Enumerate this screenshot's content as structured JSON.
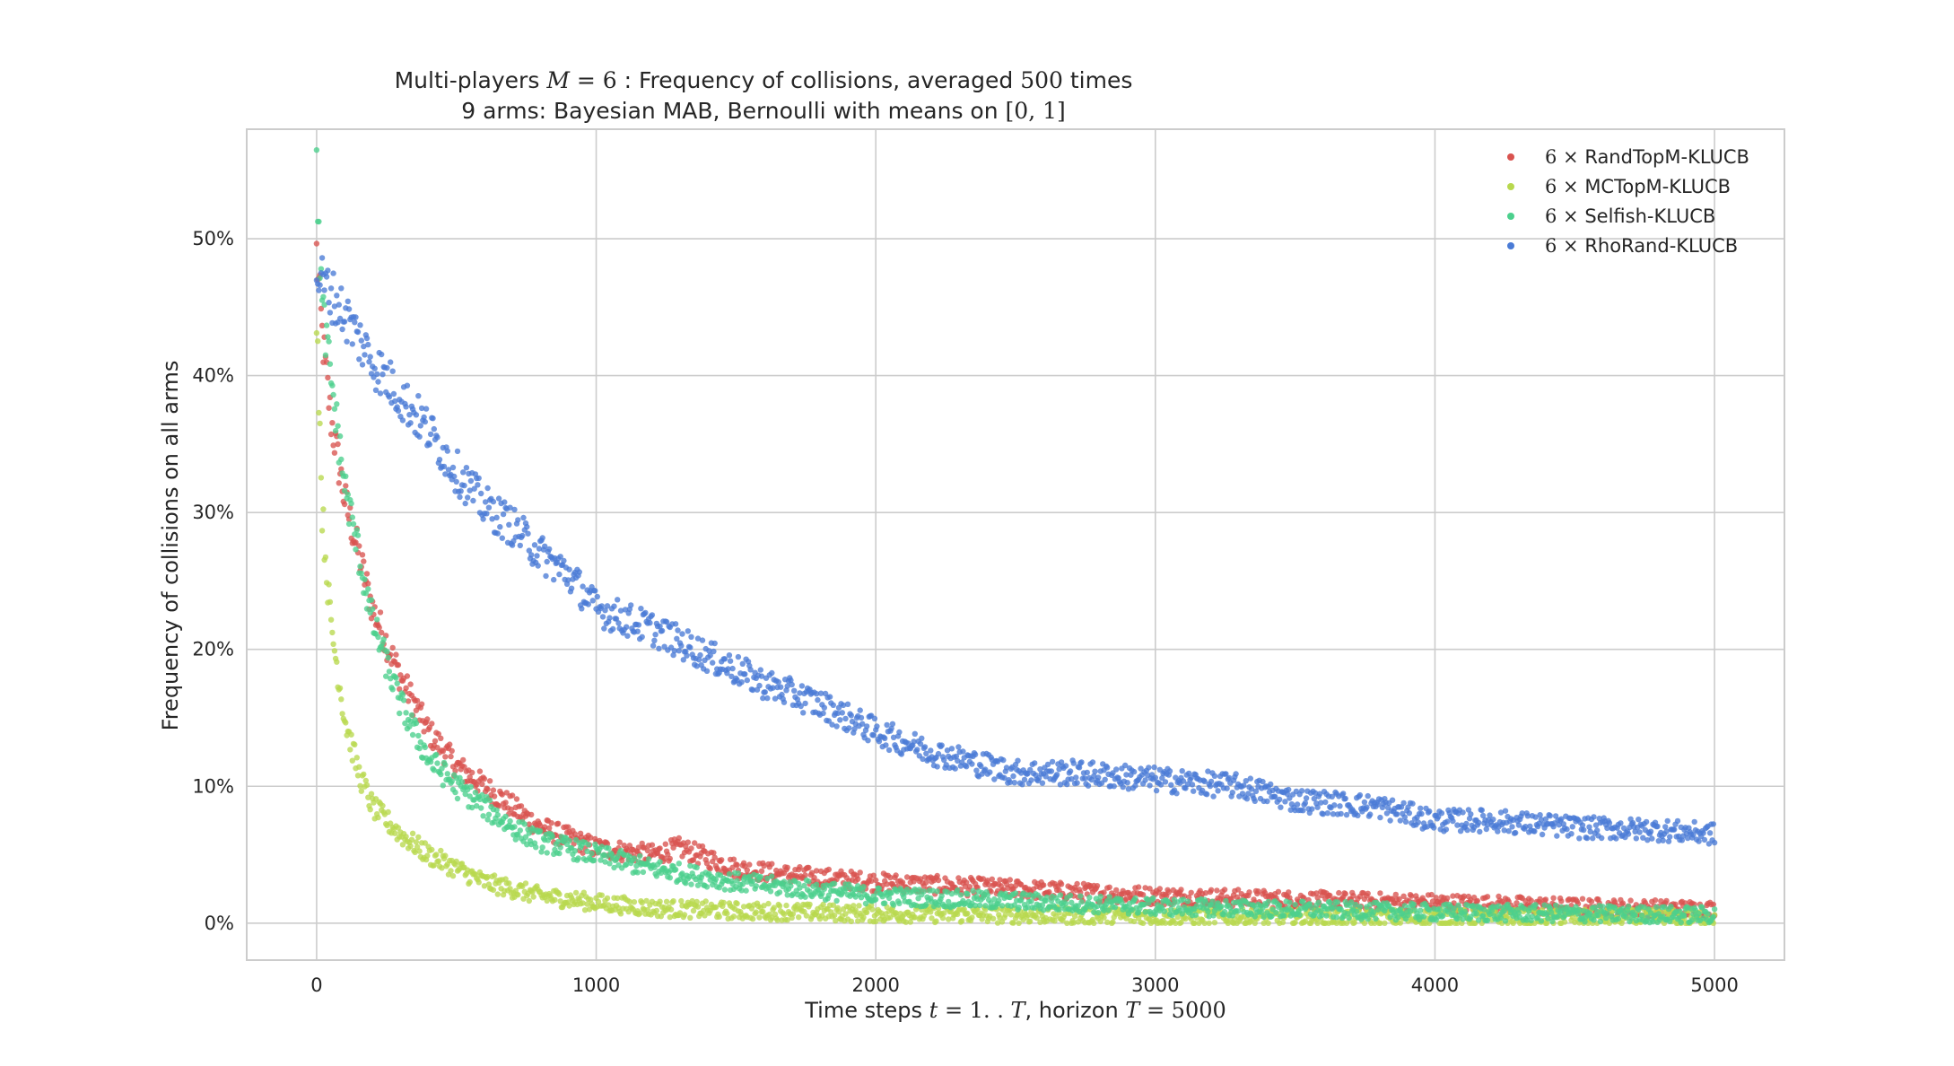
{
  "title": {
    "line1_pre": "Multi-players ",
    "line1_math_M": "M",
    "line1_math_eq": " = 6",
    "line1_mid": " : Frequency of collisions, averaged ",
    "line1_math_n": "500",
    "line1_post": " times",
    "line2_pre": "9 arms: Bayesian MAB, Bernoulli with means on ",
    "line2_math": "[0, 1]"
  },
  "xlabel": {
    "pre": "Time steps ",
    "math_t": "t",
    "math_range": " = 1. . ",
    "math_T": "T",
    "mid": ", horizon ",
    "math_T2": "T",
    "math_val": " = 5000"
  },
  "ylabel": "Frequency of collisions on all arms",
  "chart_data": {
    "type": "scatter",
    "x_ticks": [
      "0",
      "1000",
      "2000",
      "3000",
      "4000",
      "5000"
    ],
    "y_ticks": [
      "0%",
      "10%",
      "20%",
      "30%",
      "40%",
      "50%"
    ],
    "xlim": [
      -250,
      5250
    ],
    "ylim": [
      -0.027,
      0.58
    ],
    "grid": true,
    "legend_position": "top-right",
    "series": [
      {
        "name": "RandTopM-KLUCB",
        "legend_prefix": "6 ×",
        "color": "#d9534f",
        "x": [
          0,
          20,
          50,
          100,
          150,
          200,
          300,
          400,
          500,
          600,
          700,
          800,
          1000,
          1200,
          1300,
          1500,
          1700,
          2000,
          2500,
          3000,
          3500,
          4000,
          4500,
          5000
        ],
        "y": [
          0.49,
          0.43,
          0.37,
          0.31,
          0.27,
          0.23,
          0.18,
          0.14,
          0.115,
          0.1,
          0.085,
          0.07,
          0.055,
          0.05,
          0.055,
          0.04,
          0.035,
          0.03,
          0.025,
          0.02,
          0.017,
          0.015,
          0.012,
          0.01
        ]
      },
      {
        "name": "MCTopM-KLUCB",
        "legend_prefix": "6 ×",
        "color": "#b8d84e",
        "x": [
          0,
          20,
          50,
          100,
          150,
          200,
          250,
          300,
          400,
          500,
          600,
          800,
          1000,
          1200,
          1500,
          2000,
          2500,
          3000,
          3500,
          4000,
          4500,
          5000
        ],
        "y": [
          0.45,
          0.3,
          0.22,
          0.15,
          0.11,
          0.085,
          0.075,
          0.065,
          0.05,
          0.04,
          0.03,
          0.02,
          0.015,
          0.011,
          0.009,
          0.007,
          0.006,
          0.005,
          0.004,
          0.004,
          0.004,
          0.004
        ]
      },
      {
        "name": "Selfish-KLUCB",
        "legend_prefix": "6 ×",
        "color": "#4cd08d",
        "x": [
          0,
          20,
          50,
          100,
          150,
          200,
          300,
          400,
          500,
          600,
          700,
          800,
          1000,
          1200,
          1500,
          2000,
          2500,
          3000,
          3500,
          4000,
          4500,
          5000
        ],
        "y": [
          0.545,
          0.45,
          0.4,
          0.32,
          0.27,
          0.22,
          0.16,
          0.12,
          0.1,
          0.085,
          0.07,
          0.06,
          0.05,
          0.04,
          0.03,
          0.02,
          0.016,
          0.012,
          0.01,
          0.008,
          0.007,
          0.006
        ]
      },
      {
        "name": "RhoRand-KLUCB",
        "legend_prefix": "6 ×",
        "color": "#4a7bd6",
        "x": [
          0,
          50,
          100,
          200,
          300,
          400,
          500,
          600,
          700,
          800,
          900,
          1000,
          1200,
          1400,
          1600,
          1800,
          2000,
          2200,
          2300,
          2500,
          2700,
          3000,
          3300,
          3500,
          3800,
          4000,
          4200,
          4500,
          4800,
          5000
        ],
        "y": [
          0.475,
          0.46,
          0.445,
          0.41,
          0.385,
          0.36,
          0.33,
          0.305,
          0.29,
          0.27,
          0.255,
          0.23,
          0.215,
          0.195,
          0.175,
          0.16,
          0.14,
          0.125,
          0.12,
          0.11,
          0.11,
          0.105,
          0.1,
          0.09,
          0.085,
          0.075,
          0.075,
          0.07,
          0.068,
          0.065
        ]
      }
    ]
  }
}
